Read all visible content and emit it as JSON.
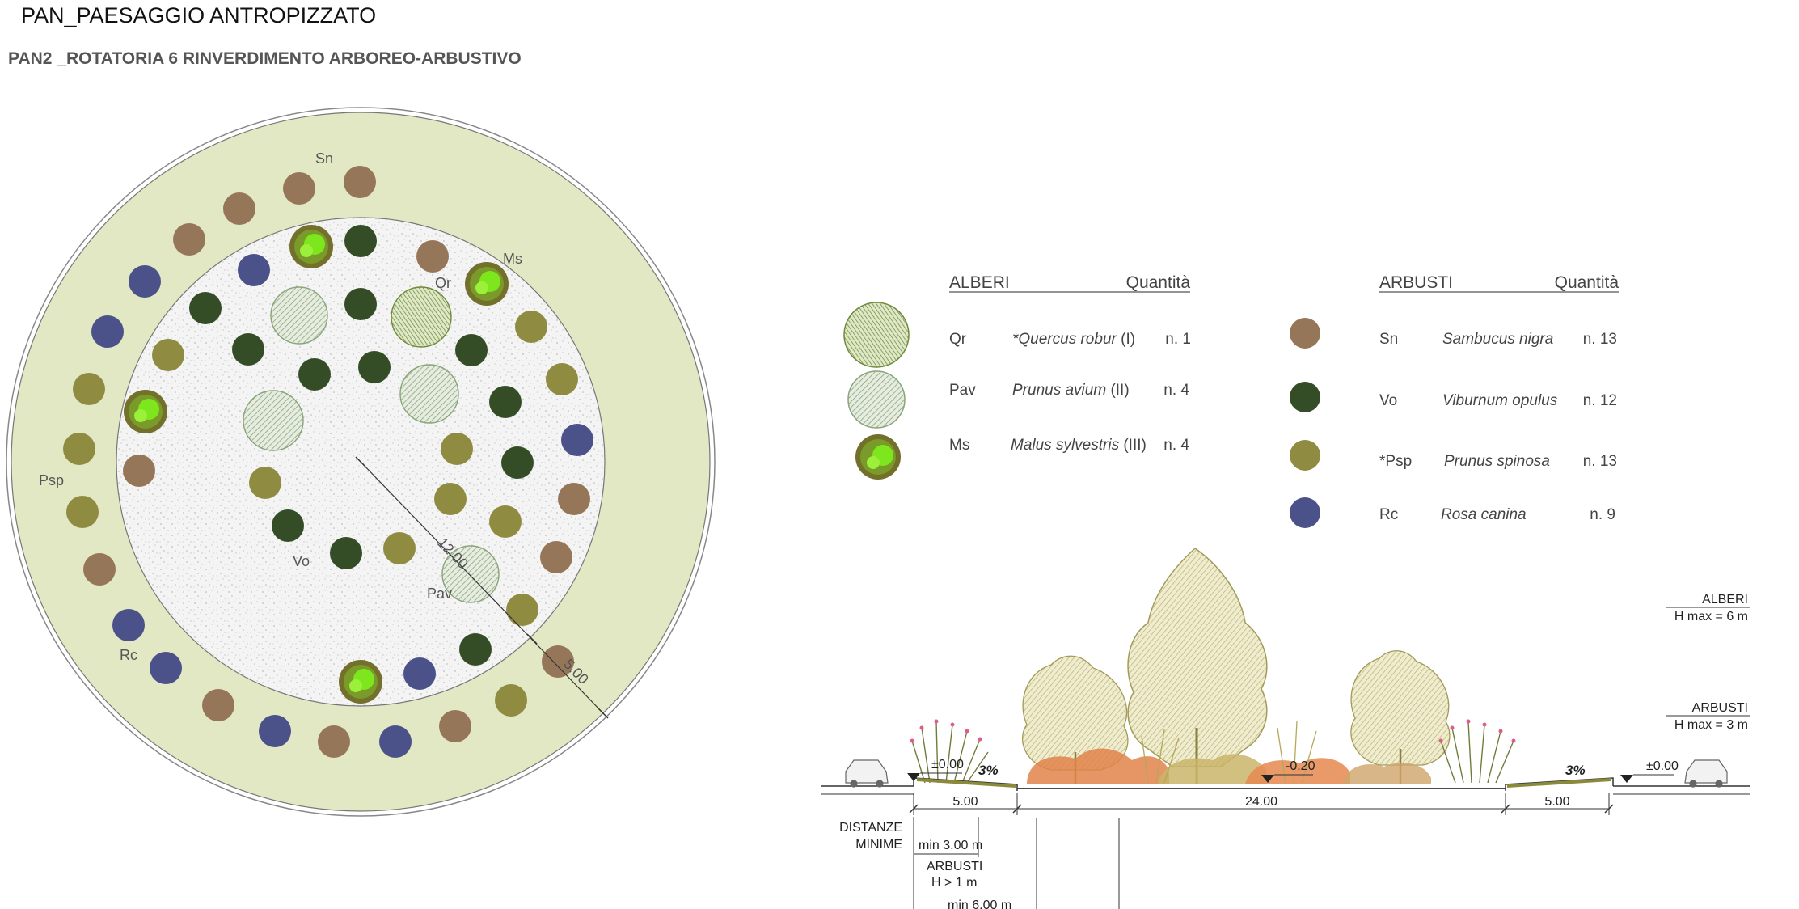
{
  "title": "PAN_PAESAGGIO ANTROPIZZATO",
  "subtitle": "PAN2 _ROTATORIA 6  RINVERDIMENTO ARBOREO-ARBUSTIVO",
  "colors": {
    "ring": "#e2e8c4",
    "sn": "#967659",
    "vo": "#344d27",
    "psp": "#8f8c42",
    "rc": "#4b5189",
    "ms_green": "#7ee61c",
    "ms_brown": "#72702a",
    "hatch": "#8aa47a"
  },
  "plan": {
    "labels": {
      "sn": "Sn",
      "ms": "Ms",
      "qr": "Qr",
      "psp": "Psp",
      "vo": "Vo",
      "pav": "Pav",
      "rc": "Rc"
    },
    "dim_inner": "12.00",
    "dim_outer": "5.00"
  },
  "legend_trees": {
    "header": "ALBERI",
    "qty_header": "Quantità",
    "rows": [
      {
        "code": "Qr",
        "name": "*Quercus robur",
        "cls": "(I)",
        "qty": "n. 1",
        "icon": "oak-hatched-icon"
      },
      {
        "code": "Pav",
        "name": "Prunus avium",
        "cls": "(II)",
        "qty": "n. 4",
        "icon": "cherry-hatched-icon"
      },
      {
        "code": "Ms",
        "name": "Malus sylvestris",
        "cls": "(III)",
        "qty": "n. 4",
        "icon": "apple-tree-icon"
      }
    ]
  },
  "legend_shrubs": {
    "header": "ARBUSTI",
    "qty_header": "Quantità",
    "rows": [
      {
        "code": "Sn",
        "name": "Sambucus nigra",
        "qty": "n. 13",
        "color": "#967659"
      },
      {
        "code": "Vo",
        "name": "Viburnum opulus",
        "qty": "n. 12",
        "color": "#344d27"
      },
      {
        "code": "*Psp",
        "name": "Prunus spinosa",
        "qty": "n. 13",
        "color": "#8f8c42"
      },
      {
        "code": "Rc",
        "name": "Rosa canina",
        "qty": "n. 9",
        "color": "#4b5189"
      }
    ]
  },
  "section": {
    "alberi_label": "ALBERI",
    "alberi_hmax": "H max = 6 m",
    "arbusti_label": "ARBUSTI",
    "arbusti_hmax": "H max = 3 m",
    "level_left": "±0.00",
    "level_right": "±0.00",
    "level_center": "-0.20",
    "slope_left": "3%",
    "slope_right": "3%",
    "dim_left": "5.00",
    "dim_center": "24.00",
    "dim_right": "5.00",
    "min_dist_1": "DISTANZE",
    "min_dist_2": "MINIME",
    "min_3": "min 3.00 m",
    "arbusti_min": "ARBUSTI",
    "arbusti_h": "H  > 1 m",
    "min_6": "min 6.00 m"
  }
}
